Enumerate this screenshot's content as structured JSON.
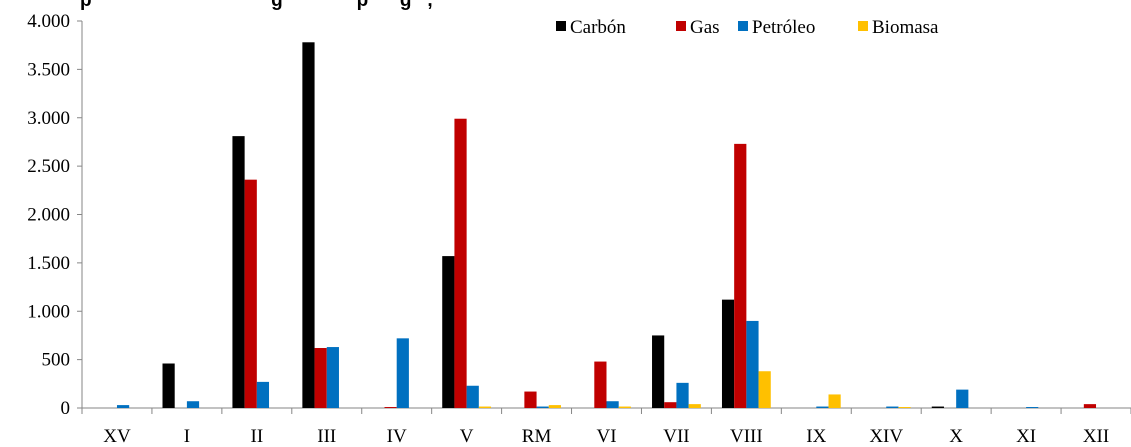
{
  "chart_data": {
    "type": "bar",
    "title": "",
    "title_visible_fragment": "p                                  g              p      g   ,",
    "xlabel": "",
    "ylabel": "",
    "categories": [
      "XV",
      "I",
      "II",
      "III",
      "IV",
      "V",
      "RM",
      "VI",
      "VII",
      "VIII",
      "IX",
      "XIV",
      "X",
      "XI",
      "XII"
    ],
    "series": [
      {
        "name": "Carbón",
        "color": "#000000",
        "values": [
          0,
          460,
          2810,
          3780,
          0,
          1570,
          0,
          0,
          750,
          1120,
          0,
          0,
          15,
          0,
          0
        ]
      },
      {
        "name": "Gas",
        "color": "#C00000",
        "values": [
          0,
          0,
          2360,
          620,
          10,
          2990,
          170,
          480,
          60,
          2730,
          0,
          0,
          0,
          0,
          40
        ]
      },
      {
        "name": "Petróleo",
        "color": "#0070C0",
        "values": [
          30,
          70,
          270,
          630,
          720,
          230,
          15,
          70,
          260,
          900,
          15,
          15,
          190,
          10,
          0
        ]
      },
      {
        "name": "Biomasa",
        "color": "#FFC000",
        "values": [
          0,
          0,
          0,
          0,
          0,
          15,
          30,
          15,
          40,
          380,
          140,
          10,
          0,
          0,
          0
        ]
      }
    ],
    "ylim": [
      0,
      4000
    ],
    "yticks": [
      0,
      500,
      1000,
      1500,
      2000,
      2500,
      3000,
      3500,
      4000
    ],
    "ytick_labels": [
      "0",
      "500",
      "1.000",
      "1.500",
      "2.000",
      "2.500",
      "3.000",
      "3.500",
      "4.000"
    ],
    "grid": false,
    "legend_position": "top-center"
  }
}
